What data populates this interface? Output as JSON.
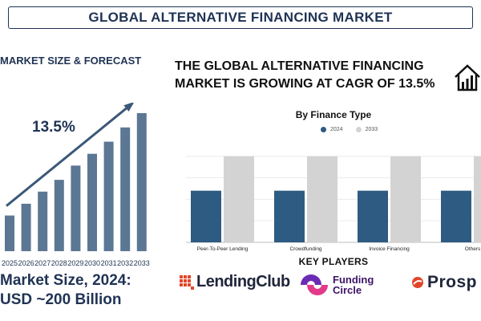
{
  "header": {
    "title": "GLOBAL ALTERNATIVE FINANCING MARKET"
  },
  "left_panel": {
    "heading": "MARKET SIZE & FORECAST",
    "market_size_line1": "Market Size, 2024:",
    "market_size_line2": "USD ~200 Billion"
  },
  "right_panel": {
    "cagr_heading": "THE GLOBAL ALTERNATIVE FINANCING MARKET IS GROWING AT CAGR OF 13.5%",
    "icon": "house-growth-icon",
    "key_players_title": "KEY PLAYERS",
    "key_players": [
      {
        "name": "LendingClub",
        "icon": "lendingclub-logo-icon",
        "color": "#e2462a"
      },
      {
        "name": "Funding Circle",
        "line1": "Funding",
        "line2": "Circle",
        "icon": "fundingcircle-logo-icon",
        "color": "#6b2bb5"
      },
      {
        "name": "Prosper",
        "visible_text": "Prosp",
        "icon": "prosper-logo-icon",
        "color": "#e2462a"
      }
    ]
  },
  "chart_data": [
    {
      "type": "bar",
      "categories": [
        "2025",
        "2026",
        "2027",
        "2028",
        "2029",
        "2030",
        "2031",
        "2032",
        "2033"
      ],
      "values": [
        1.0,
        1.33,
        1.67,
        2.0,
        2.4,
        2.73,
        3.07,
        3.47,
        3.87
      ],
      "annotation": "13.5%",
      "trend_arrow": true,
      "color": "#5b7794",
      "arrow_color": "#3b5878"
    },
    {
      "type": "bar",
      "title": "By Finance Type",
      "categories": [
        "Peer-To-Peer Lending",
        "Crowdfunding",
        "Invoice Financing",
        "Others"
      ],
      "series": [
        {
          "name": "2024",
          "values": [
            60,
            60,
            60,
            60
          ],
          "color": "#2e5b82"
        },
        {
          "name": "2033",
          "values": [
            100,
            100,
            100,
            100
          ],
          "color": "#d3d3d3"
        }
      ],
      "ylim": [
        0,
        110
      ],
      "grid": true,
      "legend": "top-center"
    }
  ]
}
